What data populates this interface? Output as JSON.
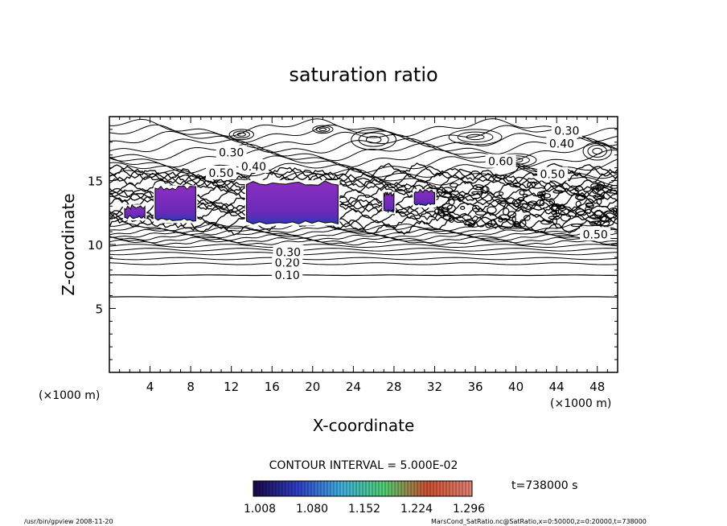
{
  "chart_data": {
    "type": "contour",
    "title": "saturation ratio",
    "xlabel": "X-coordinate",
    "ylabel": "Z-coordinate",
    "x_unit": "(×1000 m)",
    "x_unit_right": "(×1000 m)",
    "xlim": [
      0,
      50
    ],
    "ylim": [
      0,
      20
    ],
    "x_ticks": [
      4,
      8,
      12,
      16,
      20,
      24,
      28,
      32,
      36,
      40,
      44,
      48
    ],
    "y_ticks": [
      5,
      10,
      15
    ],
    "contour_interval_label": "CONTOUR INTERVAL = 5.000E-02",
    "time_label": "t=738000 s",
    "contour_labels": [
      {
        "text": "0.10",
        "x": 17.5,
        "y": 7.6
      },
      {
        "text": "0.20",
        "x": 17.5,
        "y": 8.6
      },
      {
        "text": "0.30",
        "x": 17.6,
        "y": 9.4
      },
      {
        "text": "0.30",
        "x": 12.0,
        "y": 17.2
      },
      {
        "text": "0.40",
        "x": 14.2,
        "y": 16.1
      },
      {
        "text": "0.50",
        "x": 11.0,
        "y": 15.6
      },
      {
        "text": "0.60",
        "x": 38.5,
        "y": 16.5
      },
      {
        "text": "0.50",
        "x": 43.6,
        "y": 15.5
      },
      {
        "text": "0.30",
        "x": 45.0,
        "y": 18.9
      },
      {
        "text": "0.40",
        "x": 44.5,
        "y": 17.9
      },
      {
        "text": "0.50",
        "x": 47.8,
        "y": 10.8
      }
    ],
    "shaded_regions_supersaturated": [
      {
        "x": [
          1.5,
          3.5
        ],
        "z": [
          12.0,
          13.0
        ]
      },
      {
        "x": [
          4.5,
          8.5
        ],
        "z": [
          11.8,
          14.5
        ]
      },
      {
        "x": [
          13.5,
          22.5
        ],
        "z": [
          11.6,
          14.9
        ]
      },
      {
        "x": [
          27.0,
          28.0
        ],
        "z": [
          12.5,
          14.0
        ]
      },
      {
        "x": [
          30.0,
          32.0
        ],
        "z": [
          13.0,
          14.2
        ]
      }
    ],
    "colorbar": {
      "ticks": [
        "1.008",
        "1.080",
        "1.152",
        "1.224",
        "1.296"
      ],
      "colors": [
        "#1a0a4a",
        "#3040c8",
        "#40b0e0",
        "#50d070",
        "#d05030",
        "#e08070"
      ]
    }
  },
  "footer": {
    "left": "/usr/bin/gpview   2008-11-20",
    "right": "MarsCond_SatRatio.nc@SatRatio,x=0:50000,z=0:20000,t=738000"
  }
}
